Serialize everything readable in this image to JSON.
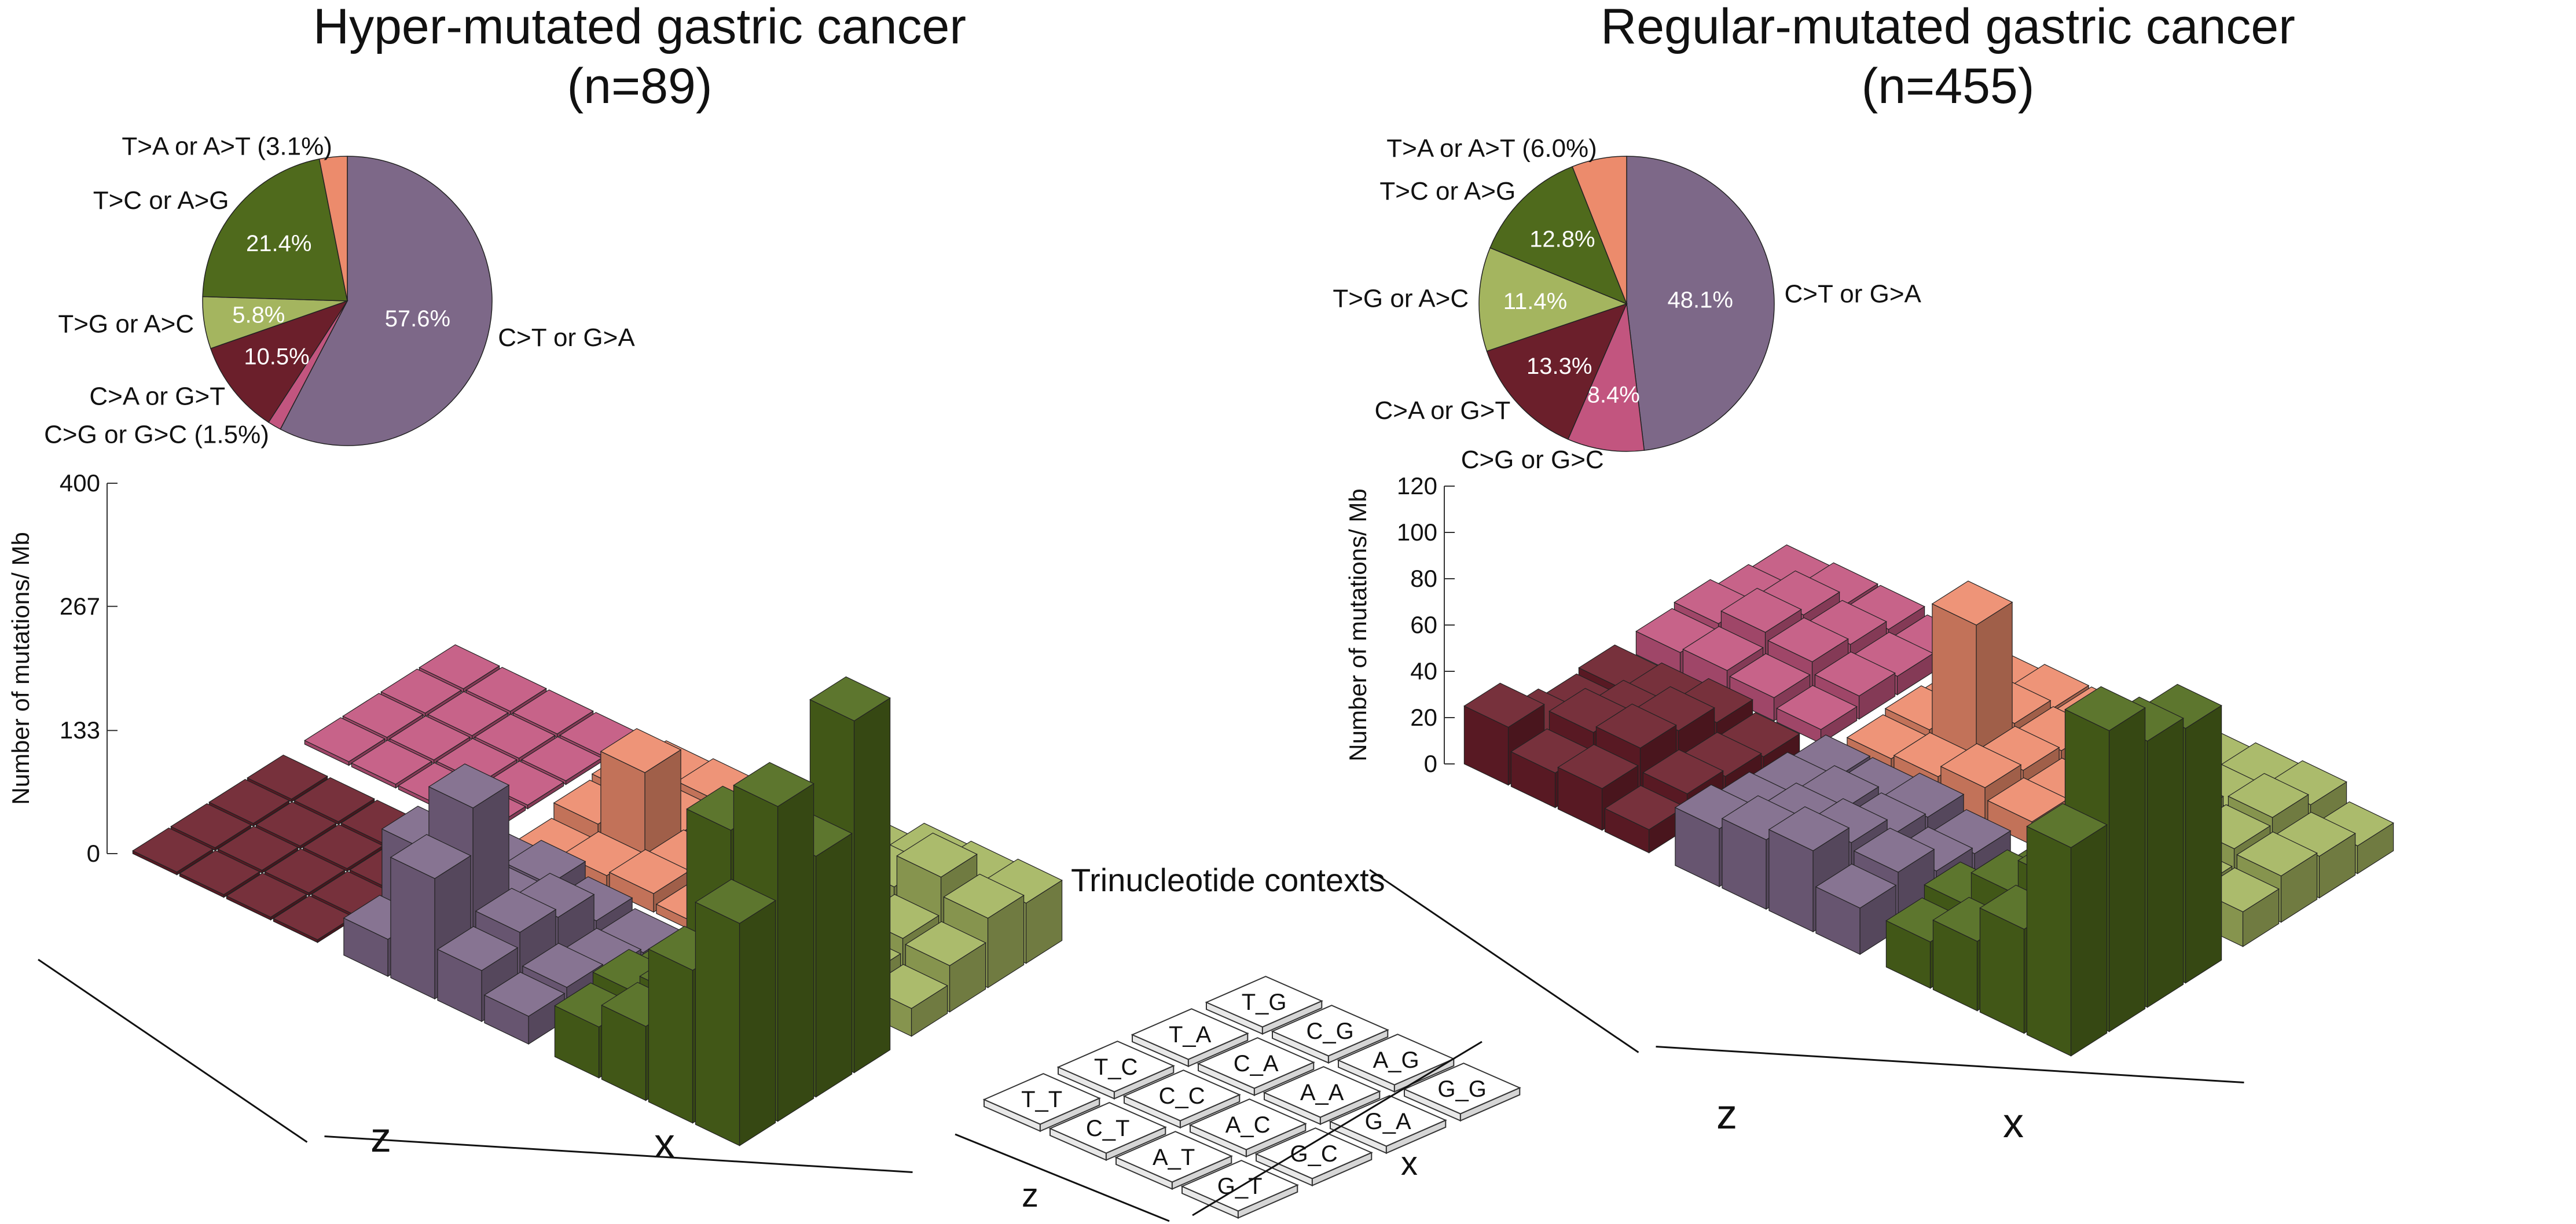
{
  "legend": {
    "title": "Trinucleotide contexts",
    "grid": [
      [
        "T_T",
        "T_C",
        "T_A",
        "T_G"
      ],
      [
        "C_T",
        "C_C",
        "C_A",
        "C_G"
      ],
      [
        "A_T",
        "A_C",
        "A_A",
        "A_G"
      ],
      [
        "G_T",
        "G_C",
        "G_A",
        "G_G"
      ]
    ],
    "z_label": "z",
    "x_label": "x"
  },
  "colors": {
    "C>A or G>T": "#6b1f2b",
    "C>G or G>C": "#c2557f",
    "C>T or G>A": "#7d6888",
    "T>A or A>T": "#ec8b6c",
    "T>C or A>G": "#4f6a1c",
    "T>G or A>C": "#a4b55f"
  },
  "chart_data": [
    {
      "type": "3d-bar+pie",
      "title": "Hyper-mutated gastric cancer",
      "subtitle": "(n=89)",
      "ylabel": "Number of mutations/ Mb",
      "yticks": [
        0,
        133,
        267,
        400
      ],
      "ylim": [
        0,
        400
      ],
      "xlabel": "x",
      "zlabel": "z",
      "pie": [
        {
          "label": "C>T or G>A",
          "value": 57.6,
          "pct_text": "57.6%"
        },
        {
          "label": "C>G or G>C",
          "value": 1.5,
          "pct_text": "(1.5%)"
        },
        {
          "label": "C>A or G>T",
          "value": 10.5,
          "pct_text": "10.5%"
        },
        {
          "label": "T>G or A>C",
          "value": 5.8,
          "pct_text": "5.8%"
        },
        {
          "label": "T>C or A>G",
          "value": 21.4,
          "pct_text": "21.4%"
        },
        {
          "label": "T>A or A>T",
          "value": 3.1,
          "pct_text": "(3.1%)"
        }
      ],
      "bars": [
        {
          "name": "C>A or G>T",
          "values": [
            [
              3,
              3,
              3,
              3
            ],
            [
              3,
              3,
              3,
              3
            ],
            [
              3,
              3,
              3,
              3
            ],
            [
              3,
              3,
              3,
              3
            ]
          ]
        },
        {
          "name": "C>G or G>C",
          "values": [
            [
              4,
              4,
              4,
              4
            ],
            [
              4,
              4,
              4,
              4
            ],
            [
              4,
              4,
              4,
              4
            ],
            [
              4,
              4,
              4,
              4
            ]
          ]
        },
        {
          "name": "C>T or G>A",
          "values": [
            [
              40,
              110,
              20,
              35
            ],
            [
              130,
              180,
              45,
              45
            ],
            [
              55,
              70,
              60,
              30
            ],
            [
              30,
              35,
              25,
              20
            ]
          ]
        },
        {
          "name": "T>A or A>T",
          "values": [
            [
              5,
              20,
              25,
              10
            ],
            [
              15,
              100,
              10,
              15
            ],
            [
              20,
              15,
              10,
              8
            ],
            [
              10,
              10,
              8,
              6
            ]
          ]
        },
        {
          "name": "T>C or A>G",
          "values": [
            [
              55,
              65,
              50,
              35
            ],
            [
              80,
              85,
              75,
              40
            ],
            [
              165,
              290,
              200,
              120
            ],
            [
              240,
              340,
              260,
              380
            ]
          ]
        },
        {
          "name": "T>G or A>C",
          "values": [
            [
              35,
              45,
              40,
              35
            ],
            [
              45,
              50,
              60,
              55
            ],
            [
              40,
              55,
              95,
              60
            ],
            [
              30,
              50,
              75,
              65
            ]
          ]
        }
      ]
    },
    {
      "type": "3d-bar+pie",
      "title": "Regular-mutated gastric cancer",
      "subtitle": "(n=455)",
      "ylabel": "Number of mutations/ Mb",
      "yticks": [
        0,
        20,
        40,
        60,
        80,
        100,
        120
      ],
      "ylim": [
        0,
        120
      ],
      "xlabel": "x",
      "zlabel": "z",
      "pie": [
        {
          "label": "C>T or G>A",
          "value": 48.1,
          "pct_text": "48.1%"
        },
        {
          "label": "C>G or G>C",
          "value": 8.4,
          "pct_text": "8.4%"
        },
        {
          "label": "C>A or G>T",
          "value": 13.3,
          "pct_text": "13.3%"
        },
        {
          "label": "T>G or A>C",
          "value": 11.4,
          "pct_text": "11.4%"
        },
        {
          "label": "T>C or A>G",
          "value": 12.8,
          "pct_text": "12.8%"
        },
        {
          "label": "T>A or A>T",
          "value": 6.0,
          "pct_text": "(6.0%)"
        }
      ],
      "bars": [
        {
          "name": "C>A or G>T",
          "values": [
            [
              25,
              12,
              8,
              10
            ],
            [
              15,
              22,
              15,
              12
            ],
            [
              18,
              25,
              22,
              15
            ],
            [
              10,
              15,
              12,
              10
            ]
          ]
        },
        {
          "name": "C>G or G>C",
          "values": [
            [
              10,
              12,
              8,
              6
            ],
            [
              12,
              18,
              15,
              8
            ],
            [
              10,
              15,
              12,
              8
            ],
            [
              6,
              10,
              8,
              5
            ]
          ]
        },
        {
          "name": "C>T or G>A",
          "values": [
            [
              25,
              20,
              18,
              15
            ],
            [
              30,
              25,
              22,
              15
            ],
            [
              35,
              28,
              20,
              18
            ],
            [
              20,
              25,
              15,
              12
            ]
          ]
        },
        {
          "name": "T>A or A>T",
          "values": [
            [
              8,
              10,
              8,
              5
            ],
            [
              10,
              65,
              12,
              8
            ],
            [
              15,
              12,
              10,
              8
            ],
            [
              10,
              8,
              6,
              5
            ]
          ]
        },
        {
          "name": "T>C or A>G",
          "values": [
            [
              20,
              25,
              15,
              12
            ],
            [
              30,
              40,
              25,
              18
            ],
            [
              45,
              55,
              40,
              30
            ],
            [
              90,
              130,
              115,
              110
            ]
          ]
        },
        {
          "name": "T>G or A>C",
          "values": [
            [
              20,
              25,
              18,
              15
            ],
            [
              35,
              25,
              20,
              18
            ],
            [
              15,
              22,
              25,
              20
            ],
            [
              15,
              20,
              18,
              12
            ]
          ]
        }
      ]
    }
  ]
}
